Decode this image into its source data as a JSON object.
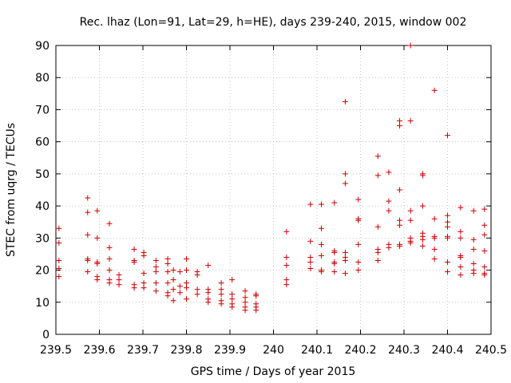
{
  "chart_data": {
    "type": "scatter",
    "title": "Rec. lhaz (Lon=91, Lat=29, h=HE), days 239-240, 2015, window 002",
    "xlabel": "GPS time / Days of year 2015",
    "ylabel": "STEC from uqrg / TECUs",
    "xlim": [
      239.5,
      240.5
    ],
    "ylim": [
      0,
      90
    ],
    "xticks": [
      "239.5",
      "239.6",
      "239.7",
      "239.8",
      "239.9",
      "240",
      "240.1",
      "240.2",
      "240.3",
      "240.4",
      "240.5"
    ],
    "yticks": [
      "0",
      "10",
      "20",
      "30",
      "40",
      "50",
      "60",
      "70",
      "80",
      "90"
    ],
    "grid": true,
    "marker": "+",
    "color": "#cc0000",
    "points": [
      [
        239.507,
        33
      ],
      [
        239.507,
        28.5
      ],
      [
        239.507,
        23
      ],
      [
        239.507,
        20.5
      ],
      [
        239.507,
        18
      ],
      [
        239.573,
        42.5
      ],
      [
        239.573,
        38
      ],
      [
        239.573,
        31
      ],
      [
        239.573,
        23.5
      ],
      [
        239.573,
        23
      ],
      [
        239.573,
        19.5
      ],
      [
        239.595,
        38.5
      ],
      [
        239.595,
        30
      ],
      [
        239.595,
        22.5
      ],
      [
        239.595,
        22
      ],
      [
        239.595,
        18
      ],
      [
        239.595,
        17
      ],
      [
        239.623,
        34.5
      ],
      [
        239.623,
        27
      ],
      [
        239.623,
        23.5
      ],
      [
        239.623,
        20
      ],
      [
        239.623,
        17
      ],
      [
        239.623,
        16
      ],
      [
        239.645,
        18.5
      ],
      [
        239.645,
        17
      ],
      [
        239.645,
        15.5
      ],
      [
        239.68,
        26.5
      ],
      [
        239.68,
        23
      ],
      [
        239.68,
        22.5
      ],
      [
        239.68,
        15.5
      ],
      [
        239.68,
        14.5
      ],
      [
        239.702,
        25.5
      ],
      [
        239.702,
        24.5
      ],
      [
        239.702,
        19
      ],
      [
        239.702,
        16
      ],
      [
        239.702,
        14.5
      ],
      [
        239.73,
        23
      ],
      [
        239.73,
        21
      ],
      [
        239.73,
        19.5
      ],
      [
        239.73,
        16
      ],
      [
        239.73,
        13.5
      ],
      [
        239.757,
        23.5
      ],
      [
        239.757,
        22
      ],
      [
        239.757,
        19.5
      ],
      [
        239.757,
        16
      ],
      [
        239.757,
        13
      ],
      [
        239.757,
        12
      ],
      [
        239.77,
        20
      ],
      [
        239.77,
        17
      ],
      [
        239.77,
        14
      ],
      [
        239.77,
        10.5
      ],
      [
        239.785,
        19.5
      ],
      [
        239.785,
        15
      ],
      [
        239.785,
        13
      ],
      [
        239.8,
        23.5
      ],
      [
        239.8,
        20
      ],
      [
        239.8,
        16
      ],
      [
        239.8,
        14.5
      ],
      [
        239.8,
        11
      ],
      [
        239.825,
        19.5
      ],
      [
        239.825,
        18.5
      ],
      [
        239.825,
        14
      ],
      [
        239.825,
        12.5
      ],
      [
        239.85,
        21.5
      ],
      [
        239.85,
        14
      ],
      [
        239.85,
        13
      ],
      [
        239.85,
        11
      ],
      [
        239.85,
        10
      ],
      [
        239.88,
        16
      ],
      [
        239.88,
        14
      ],
      [
        239.88,
        12.5
      ],
      [
        239.88,
        10.5
      ],
      [
        239.88,
        9.5
      ],
      [
        239.905,
        17
      ],
      [
        239.905,
        12.5
      ],
      [
        239.905,
        11
      ],
      [
        239.905,
        9.5
      ],
      [
        239.905,
        8.5
      ],
      [
        239.935,
        13.5
      ],
      [
        239.935,
        11.5
      ],
      [
        239.935,
        10
      ],
      [
        239.935,
        8.5
      ],
      [
        239.935,
        7.5
      ],
      [
        239.96,
        12.5
      ],
      [
        239.96,
        12
      ],
      [
        239.96,
        9.5
      ],
      [
        239.96,
        8.5
      ],
      [
        239.96,
        7.5
      ],
      [
        240.03,
        32
      ],
      [
        240.03,
        24
      ],
      [
        240.03,
        21.5
      ],
      [
        240.03,
        17
      ],
      [
        240.03,
        15.5
      ],
      [
        240.085,
        40.5
      ],
      [
        240.085,
        29
      ],
      [
        240.085,
        24
      ],
      [
        240.085,
        22.5
      ],
      [
        240.085,
        20.5
      ],
      [
        240.11,
        40.5
      ],
      [
        240.11,
        33
      ],
      [
        240.11,
        28
      ],
      [
        240.11,
        24.5
      ],
      [
        240.11,
        20
      ],
      [
        240.11,
        19.5
      ],
      [
        240.14,
        41
      ],
      [
        240.14,
        26
      ],
      [
        240.14,
        25.5
      ],
      [
        240.14,
        22.5
      ],
      [
        240.14,
        22
      ],
      [
        240.14,
        19.5
      ],
      [
        240.165,
        72.5
      ],
      [
        240.165,
        50
      ],
      [
        240.165,
        47
      ],
      [
        240.165,
        25.5
      ],
      [
        240.165,
        24
      ],
      [
        240.165,
        23
      ],
      [
        240.165,
        19
      ],
      [
        240.195,
        42
      ],
      [
        240.195,
        36
      ],
      [
        240.195,
        35.5
      ],
      [
        240.195,
        28
      ],
      [
        240.195,
        22.5
      ],
      [
        240.195,
        20
      ],
      [
        240.24,
        55.5
      ],
      [
        240.24,
        49.5
      ],
      [
        240.24,
        33.5
      ],
      [
        240.24,
        26.5
      ],
      [
        240.24,
        25.5
      ],
      [
        240.24,
        23
      ],
      [
        240.265,
        50.5
      ],
      [
        240.265,
        41.5
      ],
      [
        240.265,
        38.5
      ],
      [
        240.265,
        28
      ],
      [
        240.265,
        27
      ],
      [
        240.29,
        66.5
      ],
      [
        240.29,
        65
      ],
      [
        240.29,
        45
      ],
      [
        240.29,
        35.5
      ],
      [
        240.29,
        34
      ],
      [
        240.29,
        28
      ],
      [
        240.29,
        27.5
      ],
      [
        240.315,
        90
      ],
      [
        240.315,
        66.5
      ],
      [
        240.315,
        38.5
      ],
      [
        240.315,
        35.5
      ],
      [
        240.315,
        30
      ],
      [
        240.315,
        29
      ],
      [
        240.315,
        28.5
      ],
      [
        240.343,
        50
      ],
      [
        240.343,
        49.5
      ],
      [
        240.343,
        40
      ],
      [
        240.343,
        31.5
      ],
      [
        240.343,
        30.5
      ],
      [
        240.343,
        29.5
      ],
      [
        240.343,
        27.5
      ],
      [
        240.37,
        76
      ],
      [
        240.37,
        36
      ],
      [
        240.37,
        30.5
      ],
      [
        240.37,
        30
      ],
      [
        240.37,
        26.5
      ],
      [
        240.37,
        23.5
      ],
      [
        240.4,
        62
      ],
      [
        240.4,
        37
      ],
      [
        240.4,
        35
      ],
      [
        240.4,
        33.5
      ],
      [
        240.4,
        30.5
      ],
      [
        240.4,
        30
      ],
      [
        240.4,
        22.5
      ],
      [
        240.4,
        19.5
      ],
      [
        240.43,
        39.5
      ],
      [
        240.43,
        32
      ],
      [
        240.43,
        30
      ],
      [
        240.43,
        24.5
      ],
      [
        240.43,
        24
      ],
      [
        240.43,
        21
      ],
      [
        240.43,
        18.5
      ],
      [
        240.46,
        38.5
      ],
      [
        240.46,
        29.5
      ],
      [
        240.46,
        26.5
      ],
      [
        240.46,
        22
      ],
      [
        240.46,
        20
      ],
      [
        240.46,
        19
      ],
      [
        240.485,
        39
      ],
      [
        240.485,
        34
      ],
      [
        240.485,
        31
      ],
      [
        240.485,
        26
      ],
      [
        240.485,
        21
      ],
      [
        240.485,
        19
      ],
      [
        240.485,
        18.5
      ]
    ]
  }
}
